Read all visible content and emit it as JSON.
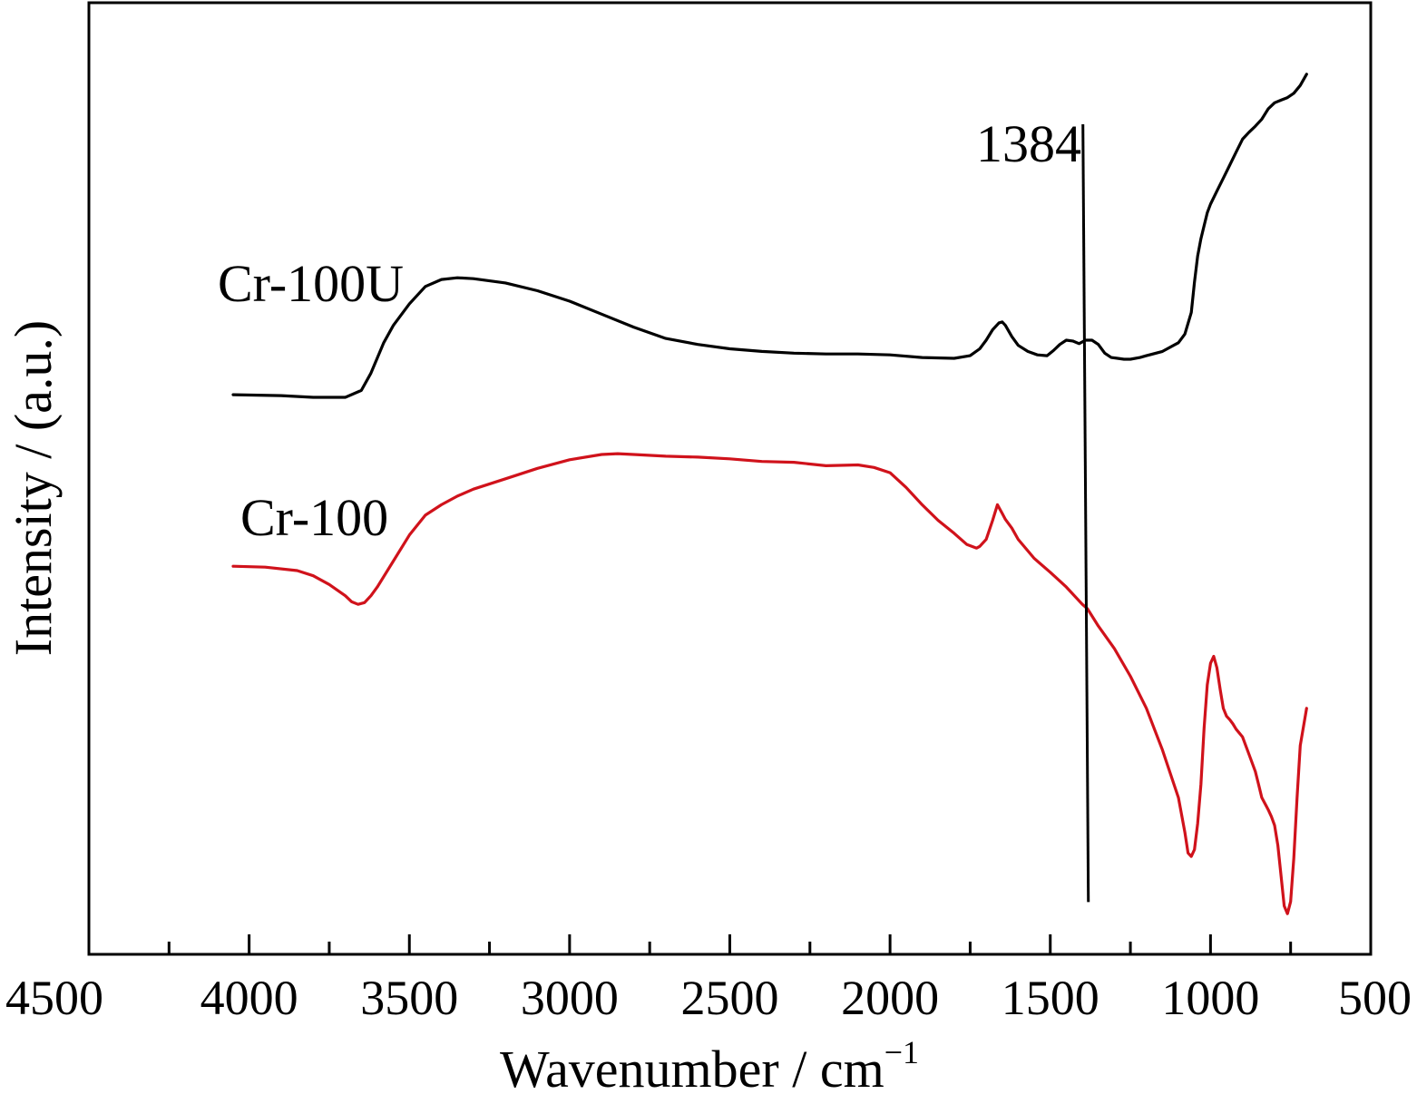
{
  "chart_data": {
    "type": "line",
    "title": "",
    "xlabel": "Wavenumber / cm",
    "xlabel_sup": "−1",
    "ylabel": "Intensity / (a.u.)",
    "xlim": [
      4500,
      500
    ],
    "x_reversed": true,
    "ylim": [
      0,
      100
    ],
    "y_ticks_shown": false,
    "x_ticks": [
      4500,
      4000,
      3500,
      3000,
      2500,
      2000,
      1500,
      1000,
      500
    ],
    "x_tick_labels": [
      "4500",
      "4000",
      "3500",
      "3000",
      "2500",
      "2000",
      "1500",
      "1000",
      "500"
    ],
    "x_minor_ticks": [
      4250,
      3750,
      3250,
      2750,
      2250,
      1750,
      1250,
      750
    ],
    "grid": false,
    "legend": "none",
    "series": [
      {
        "name": "Cr-100U",
        "color": "#000000",
        "x": [
          4050,
          3900,
          3800,
          3700,
          3650,
          3620,
          3580,
          3550,
          3500,
          3450,
          3400,
          3350,
          3300,
          3200,
          3100,
          3000,
          2900,
          2800,
          2700,
          2600,
          2500,
          2400,
          2300,
          2200,
          2100,
          2000,
          1900,
          1800,
          1750,
          1720,
          1700,
          1680,
          1660,
          1650,
          1640,
          1620,
          1600,
          1570,
          1540,
          1510,
          1490,
          1470,
          1450,
          1430,
          1410,
          1390,
          1370,
          1350,
          1330,
          1310,
          1290,
          1270,
          1250,
          1220,
          1200,
          1150,
          1100,
          1080,
          1060,
          1050,
          1040,
          1030,
          1020,
          1010,
          1000,
          980,
          960,
          940,
          920,
          900,
          880,
          860,
          840,
          820,
          800,
          780,
          760,
          740,
          720,
          700
        ],
        "y": [
          62.5,
          62.4,
          62.2,
          62.2,
          63.0,
          65.0,
          68.5,
          70.5,
          73.0,
          75.0,
          75.8,
          76.0,
          75.9,
          75.4,
          74.5,
          73.3,
          71.8,
          70.3,
          69.0,
          68.3,
          67.8,
          67.5,
          67.3,
          67.2,
          67.2,
          67.1,
          66.8,
          66.7,
          67.0,
          67.8,
          68.8,
          70.0,
          70.8,
          70.9,
          70.5,
          69.2,
          68.2,
          67.5,
          67.1,
          67.0,
          67.6,
          68.3,
          68.8,
          68.7,
          68.4,
          68.8,
          68.8,
          68.3,
          67.3,
          66.8,
          66.7,
          66.6,
          66.6,
          66.8,
          67.0,
          67.5,
          68.5,
          69.5,
          72.0,
          75.5,
          78.5,
          80.5,
          82.0,
          83.5,
          84.5,
          86.0,
          87.5,
          89.0,
          90.5,
          92.0,
          92.8,
          93.5,
          94.3,
          95.5,
          96.2,
          96.5,
          96.8,
          97.3,
          98.2,
          99.5
        ]
      },
      {
        "name": "Cr-100",
        "color": "#d0121b",
        "x": [
          4050,
          3950,
          3850,
          3800,
          3750,
          3700,
          3680,
          3660,
          3640,
          3620,
          3600,
          3550,
          3500,
          3450,
          3400,
          3350,
          3300,
          3200,
          3100,
          3000,
          2900,
          2850,
          2800,
          2700,
          2600,
          2500,
          2400,
          2300,
          2200,
          2100,
          2050,
          2000,
          1950,
          1900,
          1850,
          1800,
          1760,
          1730,
          1720,
          1700,
          1680,
          1665,
          1650,
          1640,
          1620,
          1600,
          1550,
          1500,
          1450,
          1400,
          1384,
          1350,
          1300,
          1250,
          1200,
          1150,
          1100,
          1080,
          1070,
          1060,
          1050,
          1040,
          1030,
          1020,
          1010,
          1000,
          990,
          980,
          970,
          960,
          950,
          940,
          930,
          920,
          900,
          880,
          860,
          850,
          840,
          820,
          810,
          800,
          790,
          780,
          770,
          760,
          750,
          740,
          730,
          720,
          700
        ],
        "y": [
          42.7,
          42.6,
          42.2,
          41.6,
          40.6,
          39.3,
          38.6,
          38.3,
          38.5,
          39.3,
          40.3,
          43.3,
          46.3,
          48.6,
          49.8,
          50.8,
          51.6,
          52.8,
          54.0,
          55.0,
          55.6,
          55.7,
          55.6,
          55.4,
          55.3,
          55.1,
          54.8,
          54.7,
          54.3,
          54.4,
          54.1,
          53.5,
          51.8,
          49.8,
          48.0,
          46.5,
          45.2,
          44.8,
          45.0,
          45.8,
          48.0,
          49.8,
          48.8,
          48.1,
          47.1,
          45.8,
          43.6,
          42.0,
          40.3,
          38.3,
          37.8,
          35.8,
          33.2,
          30.0,
          26.3,
          21.5,
          16.0,
          12.0,
          9.6,
          9.2,
          10.0,
          13.0,
          17.5,
          24.0,
          29.0,
          31.5,
          32.3,
          31.0,
          28.5,
          26.3,
          25.4,
          25.0,
          24.5,
          23.9,
          23.0,
          21.0,
          19.0,
          17.5,
          16.0,
          14.6,
          13.8,
          12.8,
          10.5,
          7.0,
          3.5,
          2.6,
          4.0,
          9.0,
          16.0,
          22.0,
          26.3
        ]
      }
    ],
    "annotations": [
      {
        "text": "Cr-100U",
        "target": "series-0"
      },
      {
        "text": "Cr-100",
        "target": "series-1"
      },
      {
        "text": "1384",
        "type": "vertical-marker",
        "x": 1384
      }
    ],
    "marker_line": {
      "x_top": 1384,
      "x_bottom": 1384,
      "y_top": 100,
      "y_bottom": 3.0
    }
  }
}
